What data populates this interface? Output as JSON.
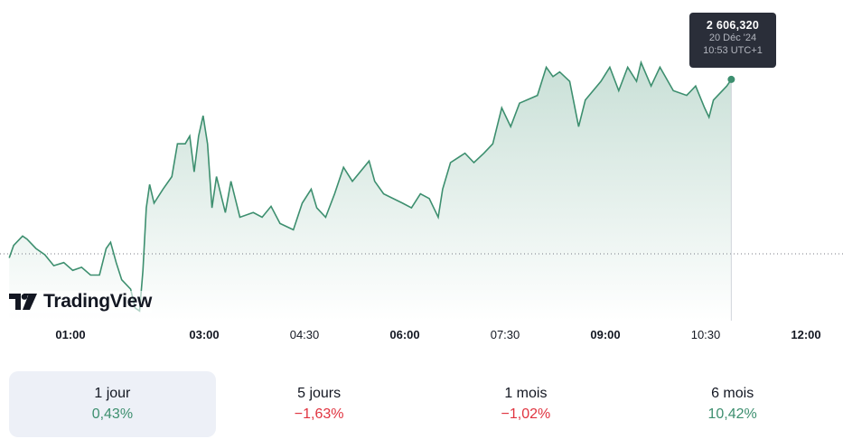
{
  "chart_data": {
    "type": "area",
    "x_ticks": [
      {
        "label": "01:00",
        "major": true
      },
      {
        "label": "03:00",
        "major": true
      },
      {
        "label": "04:30",
        "major": false
      },
      {
        "label": "06:00",
        "major": true
      },
      {
        "label": "07:30",
        "major": false
      },
      {
        "label": "09:00",
        "major": true
      },
      {
        "label": "10:30",
        "major": false
      },
      {
        "label": "12:00",
        "major": true
      }
    ],
    "previous_close": 2595.16,
    "grid": false,
    "line_color": "#3d8f6f",
    "points": [
      [
        "00:05",
        2594.9
      ],
      [
        "00:09",
        2595.7
      ],
      [
        "00:17",
        2596.3
      ],
      [
        "00:21",
        2596.1
      ],
      [
        "00:29",
        2595.5
      ],
      [
        "00:37",
        2595.1
      ],
      [
        "00:45",
        2594.4
      ],
      [
        "00:54",
        2594.6
      ],
      [
        "01:02",
        2594.1
      ],
      [
        "01:10",
        2594.3
      ],
      [
        "01:18",
        2593.8
      ],
      [
        "01:26",
        2593.8
      ],
      [
        "01:32",
        2595.5
      ],
      [
        "01:36",
        2595.9
      ],
      [
        "01:41",
        2594.6
      ],
      [
        "01:46",
        2593.5
      ],
      [
        "01:54",
        2592.9
      ],
      [
        "01:58",
        2591.7
      ],
      [
        "02:02",
        2591.5
      ],
      [
        "02:05",
        2594.1
      ],
      [
        "02:08",
        2598.1
      ],
      [
        "02:11",
        2599.6
      ],
      [
        "02:15",
        2598.4
      ],
      [
        "02:23",
        2599.3
      ],
      [
        "02:31",
        2600.1
      ],
      [
        "02:36",
        2602.2
      ],
      [
        "02:43",
        2602.2
      ],
      [
        "02:47",
        2602.7
      ],
      [
        "02:51",
        2600.4
      ],
      [
        "02:55",
        2602.7
      ],
      [
        "02:59",
        2604.0
      ],
      [
        "03:03",
        2602.2
      ],
      [
        "03:07",
        2598.1
      ],
      [
        "03:11",
        2600.1
      ],
      [
        "03:19",
        2597.8
      ],
      [
        "03:24",
        2599.8
      ],
      [
        "03:32",
        2597.5
      ],
      [
        "03:44",
        2597.8
      ],
      [
        "03:52",
        2597.5
      ],
      [
        "04:00",
        2598.2
      ],
      [
        "04:08",
        2597.1
      ],
      [
        "04:20",
        2596.7
      ],
      [
        "04:28",
        2598.4
      ],
      [
        "04:36",
        2599.3
      ],
      [
        "04:41",
        2598.1
      ],
      [
        "04:49",
        2597.5
      ],
      [
        "04:57",
        2599.0
      ],
      [
        "05:05",
        2600.7
      ],
      [
        "05:13",
        2599.8
      ],
      [
        "05:28",
        2601.1
      ],
      [
        "05:33",
        2599.8
      ],
      [
        "05:41",
        2599.0
      ],
      [
        "05:58",
        2598.4
      ],
      [
        "06:06",
        2598.1
      ],
      [
        "06:14",
        2599.0
      ],
      [
        "06:22",
        2598.7
      ],
      [
        "06:30",
        2597.5
      ],
      [
        "06:34",
        2599.3
      ],
      [
        "06:41",
        2601.0
      ],
      [
        "06:54",
        2601.6
      ],
      [
        "07:02",
        2601.0
      ],
      [
        "07:11",
        2601.6
      ],
      [
        "07:19",
        2602.2
      ],
      [
        "07:27",
        2604.5
      ],
      [
        "07:35",
        2603.3
      ],
      [
        "07:43",
        2604.8
      ],
      [
        "07:59",
        2605.3
      ],
      [
        "08:07",
        2607.1
      ],
      [
        "08:13",
        2606.5
      ],
      [
        "08:19",
        2606.8
      ],
      [
        "08:28",
        2606.2
      ],
      [
        "08:36",
        2603.3
      ],
      [
        "08:42",
        2605.0
      ],
      [
        "08:56",
        2606.2
      ],
      [
        "09:04",
        2607.1
      ],
      [
        "09:12",
        2605.6
      ],
      [
        "09:20",
        2607.1
      ],
      [
        "09:28",
        2606.2
      ],
      [
        "09:32",
        2607.4
      ],
      [
        "09:41",
        2605.9
      ],
      [
        "09:49",
        2607.1
      ],
      [
        "10:01",
        2605.6
      ],
      [
        "10:13",
        2605.3
      ],
      [
        "10:21",
        2605.9
      ],
      [
        "10:29",
        2604.5
      ],
      [
        "10:33",
        2603.9
      ],
      [
        "10:37",
        2605.0
      ],
      [
        "10:49",
        2605.9
      ],
      [
        "10:53",
        2606.32
      ]
    ]
  },
  "tooltip": {
    "value": "2 606,320",
    "date": "20 Déc '24",
    "time": "10:53 UTC+1"
  },
  "logo": {
    "text": "TradingView"
  },
  "periods": [
    {
      "label": "1 jour",
      "change": "0,43%",
      "trend": "up",
      "selected": true
    },
    {
      "label": "5 jours",
      "change": "−1,63%",
      "trend": "down"
    },
    {
      "label": "1 mois",
      "change": "−1,02%",
      "trend": "down"
    },
    {
      "label": "6 mois",
      "change": "10,42%",
      "trend": "up"
    }
  ]
}
